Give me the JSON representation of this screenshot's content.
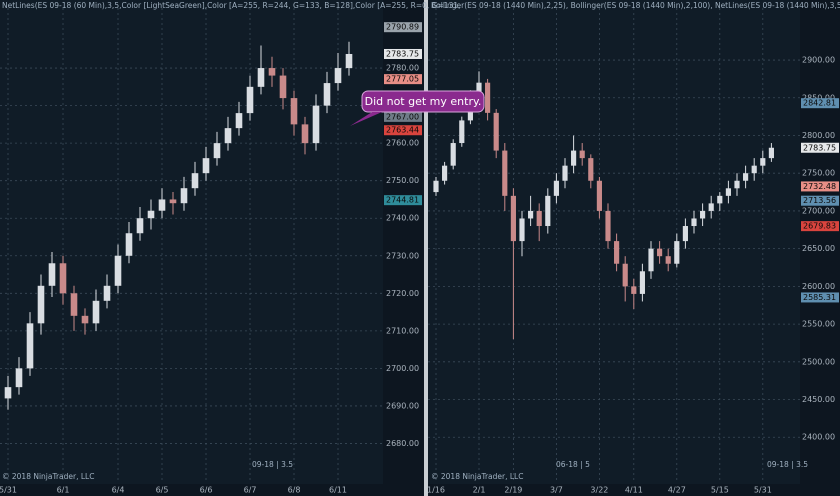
{
  "chart_data": [
    {
      "type": "candlestick",
      "title": "NetLines(ES 09-18 (60 Min),3,5,Color [LightSeaGreen],Color [A=255, R=244, G=133, B=128],Color [A=255, R=0, G=131,",
      "footer": "© 2018 NinjaTrader, LLC",
      "instrument": "09-18 | 3.5",
      "annotation": "Did not get my entry.",
      "up_color": "#d9dde2",
      "down_color": "#c98a8a",
      "ylim": [
        2670,
        2796
      ],
      "yticks": [
        {
          "value": 2680,
          "label": "2680.00"
        },
        {
          "value": 2690,
          "label": "2690.00"
        },
        {
          "value": 2700,
          "label": "2700.00"
        },
        {
          "value": 2710,
          "label": "2710.00"
        },
        {
          "value": 2720,
          "label": "2720.00"
        },
        {
          "value": 2730,
          "label": "2730.00"
        },
        {
          "value": 2740,
          "label": "2740.00"
        },
        {
          "value": 2750,
          "label": "2750.00"
        },
        {
          "value": 2760,
          "label": "2760.00"
        },
        {
          "value": 2770,
          "label": "2770.00"
        },
        {
          "value": 2780,
          "label": "2780.00"
        }
      ],
      "xticks": [
        {
          "value": 0,
          "label": "5/31"
        },
        {
          "value": 5,
          "label": "6/1"
        },
        {
          "value": 10,
          "label": "6/4"
        },
        {
          "value": 14,
          "label": "6/5"
        },
        {
          "value": 18,
          "label": "6/6"
        },
        {
          "value": 22,
          "label": "6/7"
        },
        {
          "value": 26,
          "label": "6/8"
        },
        {
          "value": 30,
          "label": "6/11"
        }
      ],
      "price_labels": [
        {
          "value": 2790.89,
          "color": "#9aa3ab"
        },
        {
          "value": 2783.75,
          "color": "#e6e8ea"
        },
        {
          "value": 2777.05,
          "color": "#e88e86"
        },
        {
          "value": 2767,
          "label": "2767.00",
          "color": "#6f7c88"
        },
        {
          "value": 2763.44,
          "color": "#d9443e"
        },
        {
          "value": 2744.81,
          "color": "#2f8c9a"
        }
      ],
      "ohlc": [
        [
          2692,
          2698,
          2689,
          2695
        ],
        [
          2695,
          2703,
          2693,
          2700
        ],
        [
          2700,
          2715,
          2698,
          2712
        ],
        [
          2712,
          2725,
          2709,
          2722
        ],
        [
          2722,
          2731,
          2719,
          2728
        ],
        [
          2728,
          2730,
          2717,
          2720
        ],
        [
          2720,
          2722,
          2710,
          2714
        ],
        [
          2714,
          2716,
          2709,
          2712
        ],
        [
          2712,
          2721,
          2710,
          2718
        ],
        [
          2718,
          2725,
          2716,
          2722
        ],
        [
          2722,
          2733,
          2720,
          2730
        ],
        [
          2730,
          2739,
          2728,
          2736
        ],
        [
          2736,
          2743,
          2734,
          2740
        ],
        [
          2740,
          2745,
          2737,
          2742
        ],
        [
          2742,
          2748,
          2740,
          2745
        ],
        [
          2745,
          2747,
          2741,
          2744
        ],
        [
          2744,
          2751,
          2742,
          2748
        ],
        [
          2748,
          2755,
          2746,
          2752
        ],
        [
          2752,
          2759,
          2750,
          2756
        ],
        [
          2756,
          2763,
          2754,
          2760
        ],
        [
          2760,
          2767,
          2758,
          2764
        ],
        [
          2764,
          2771,
          2762,
          2768
        ],
        [
          2768,
          2778,
          2766,
          2775
        ],
        [
          2775,
          2786,
          2773,
          2780
        ],
        [
          2780,
          2783,
          2775,
          2778
        ],
        [
          2778,
          2780,
          2769,
          2772
        ],
        [
          2772,
          2774,
          2762,
          2765
        ],
        [
          2765,
          2767,
          2757,
          2760
        ],
        [
          2760,
          2773,
          2758,
          2770
        ],
        [
          2770,
          2779,
          2768,
          2776
        ],
        [
          2776,
          2784,
          2774,
          2780
        ],
        [
          2780,
          2787,
          2778,
          2783.75
        ]
      ]
    },
    {
      "type": "candlestick",
      "title": "Bollinger(ES 09-18 (1440 Min),2,25), Bollinger(ES 09-18 (1440 Min),2,100), NetLines(ES 09-18 (1440 Min),3,5,Color",
      "footer": "© 2018 NinjaTrader, LLC",
      "contract": "06-18 | 5",
      "instrument": "09-18 | 3.5",
      "up_color": "#d9dde2",
      "down_color": "#c98a8a",
      "ylim": [
        2342,
        2969
      ],
      "yticks": [
        {
          "value": 2400,
          "label": "2400.00"
        },
        {
          "value": 2450,
          "label": "2450.00"
        },
        {
          "value": 2500,
          "label": "2500.00"
        },
        {
          "value": 2550,
          "label": "2550.00"
        },
        {
          "value": 2600,
          "label": "2600.00"
        },
        {
          "value": 2650,
          "label": "2650.00"
        },
        {
          "value": 2700,
          "label": "2700.00"
        },
        {
          "value": 2750,
          "label": "2750.00"
        },
        {
          "value": 2800,
          "label": "2800.00"
        },
        {
          "value": 2850,
          "label": "2850.00"
        },
        {
          "value": 2900,
          "label": "2900.00"
        }
      ],
      "xticks": [
        {
          "value": 0,
          "label": "1/16"
        },
        {
          "value": 5,
          "label": "2/1"
        },
        {
          "value": 9,
          "label": "2/19"
        },
        {
          "value": 14,
          "label": "3/7"
        },
        {
          "value": 19,
          "label": "3/22"
        },
        {
          "value": 23,
          "label": "4/11"
        },
        {
          "value": 28,
          "label": "4/27"
        },
        {
          "value": 33,
          "label": "5/15"
        },
        {
          "value": 38,
          "label": "5/31"
        }
      ],
      "price_labels": [
        {
          "value": 2842.81,
          "color": "#5f8fb0"
        },
        {
          "value": 2783.75,
          "color": "#e6e8ea"
        },
        {
          "value": 2732.48,
          "color": "#e88e86"
        },
        {
          "value": 2713.56,
          "color": "#5f8fb0"
        },
        {
          "value": 2679.83,
          "color": "#d9443e"
        },
        {
          "value": 2585.31,
          "color": "#5f8fb0"
        }
      ],
      "ohlc": [
        [
          2725,
          2745,
          2720,
          2740
        ],
        [
          2740,
          2765,
          2735,
          2760
        ],
        [
          2760,
          2795,
          2755,
          2790
        ],
        [
          2790,
          2825,
          2785,
          2820
        ],
        [
          2820,
          2860,
          2815,
          2850
        ],
        [
          2850,
          2885,
          2840,
          2870
        ],
        [
          2870,
          2875,
          2820,
          2830
        ],
        [
          2830,
          2835,
          2770,
          2780
        ],
        [
          2780,
          2790,
          2700,
          2720
        ],
        [
          2720,
          2730,
          2530,
          2660
        ],
        [
          2660,
          2700,
          2640,
          2690
        ],
        [
          2690,
          2720,
          2680,
          2700
        ],
        [
          2700,
          2710,
          2660,
          2680
        ],
        [
          2680,
          2730,
          2670,
          2720
        ],
        [
          2720,
          2750,
          2710,
          2740
        ],
        [
          2740,
          2770,
          2730,
          2760
        ],
        [
          2760,
          2800,
          2750,
          2780
        ],
        [
          2780,
          2790,
          2760,
          2770
        ],
        [
          2770,
          2775,
          2730,
          2740
        ],
        [
          2740,
          2745,
          2690,
          2700
        ],
        [
          2700,
          2710,
          2650,
          2660
        ],
        [
          2660,
          2670,
          2620,
          2630
        ],
        [
          2630,
          2640,
          2580,
          2600
        ],
        [
          2600,
          2610,
          2570,
          2590
        ],
        [
          2590,
          2630,
          2580,
          2620
        ],
        [
          2620,
          2660,
          2610,
          2650
        ],
        [
          2650,
          2660,
          2630,
          2640
        ],
        [
          2640,
          2650,
          2620,
          2630
        ],
        [
          2630,
          2670,
          2625,
          2660
        ],
        [
          2660,
          2690,
          2650,
          2680
        ],
        [
          2680,
          2700,
          2670,
          2690
        ],
        [
          2690,
          2710,
          2680,
          2700
        ],
        [
          2700,
          2720,
          2690,
          2710
        ],
        [
          2710,
          2725,
          2700,
          2720
        ],
        [
          2720,
          2740,
          2710,
          2730
        ],
        [
          2730,
          2750,
          2720,
          2740
        ],
        [
          2740,
          2760,
          2730,
          2750
        ],
        [
          2750,
          2770,
          2740,
          2760
        ],
        [
          2760,
          2780,
          2750,
          2770
        ],
        [
          2770,
          2790,
          2765,
          2783.75
        ]
      ]
    }
  ]
}
